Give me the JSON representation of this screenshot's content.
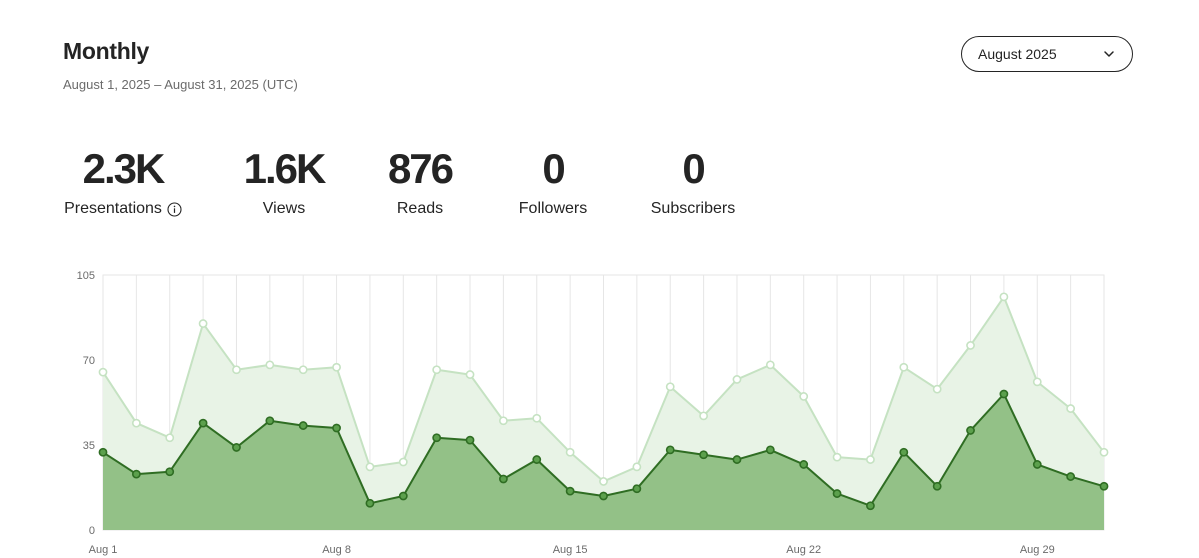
{
  "header": {
    "title": "Monthly",
    "date_range": "August 1, 2025 – August 31, 2025 (UTC)"
  },
  "month_selector": {
    "selected": "August 2025",
    "icon": "chevron-down-icon"
  },
  "stats": [
    {
      "value": "2.3K",
      "label": "Presentations",
      "info_icon": true
    },
    {
      "value": "1.6K",
      "label": "Views"
    },
    {
      "value": "876",
      "label": "Reads"
    },
    {
      "value": "0",
      "label": "Followers"
    },
    {
      "value": "0",
      "label": "Subscribers"
    }
  ],
  "colors": {
    "views_line": "#c5e2c2",
    "views_fill": "#e8f3e6",
    "reads_line": "#2f6d23",
    "reads_fill": "#93c187",
    "grid": "#e6e6e6"
  },
  "chart_data": {
    "type": "area",
    "x": [
      "Aug 1",
      "Aug 2",
      "Aug 3",
      "Aug 4",
      "Aug 5",
      "Aug 6",
      "Aug 7",
      "Aug 8",
      "Aug 9",
      "Aug 10",
      "Aug 11",
      "Aug 12",
      "Aug 13",
      "Aug 14",
      "Aug 15",
      "Aug 16",
      "Aug 17",
      "Aug 18",
      "Aug 19",
      "Aug 20",
      "Aug 21",
      "Aug 22",
      "Aug 23",
      "Aug 24",
      "Aug 25",
      "Aug 26",
      "Aug 27",
      "Aug 28",
      "Aug 29",
      "Aug 30",
      "Aug 31"
    ],
    "x_tick_labels": [
      "Aug 1",
      "Aug 8",
      "Aug 15",
      "Aug 22",
      "Aug 29"
    ],
    "y_ticks": [
      0,
      35,
      70,
      105
    ],
    "ylim": [
      0,
      105
    ],
    "grid": true,
    "legend": "none",
    "series": [
      {
        "values": [
          65,
          44,
          38,
          85,
          66,
          68,
          66,
          67,
          26,
          28,
          66,
          64,
          45,
          46,
          32,
          20,
          26,
          59,
          47,
          62,
          68,
          55,
          30,
          29,
          67,
          58,
          76,
          96,
          61,
          50,
          32
        ]
      },
      {
        "values": [
          32,
          23,
          24,
          44,
          34,
          45,
          43,
          42,
          11,
          14,
          38,
          37,
          21,
          29,
          16,
          14,
          17,
          33,
          31,
          29,
          33,
          27,
          15,
          10,
          32,
          18,
          41,
          56,
          27,
          22,
          18
        ]
      }
    ]
  }
}
